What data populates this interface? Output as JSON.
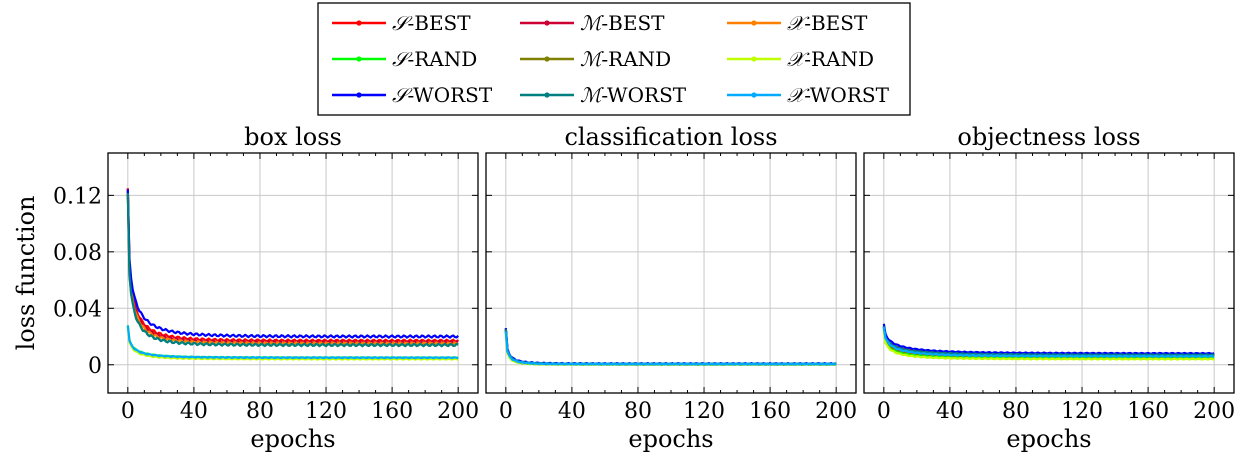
{
  "legend": {
    "entries": [
      {
        "prefix": "𝒮",
        "variant": "-BEST",
        "color": "#ff0000"
      },
      {
        "prefix": "ℳ",
        "variant": "-BEST",
        "color": "#cc0033"
      },
      {
        "prefix": "𝒳",
        "variant": "-BEST",
        "color": "#ff8000"
      },
      {
        "prefix": "𝒮",
        "variant": "-RAND",
        "color": "#00ff00"
      },
      {
        "prefix": "ℳ",
        "variant": "-RAND",
        "color": "#808000"
      },
      {
        "prefix": "𝒳",
        "variant": "-RAND",
        "color": "#bfff00"
      },
      {
        "prefix": "𝒮",
        "variant": "-WORST",
        "color": "#0000ff"
      },
      {
        "prefix": "ℳ",
        "variant": "-WORST",
        "color": "#008080"
      },
      {
        "prefix": "𝒳",
        "variant": "-WORST",
        "color": "#00aaff"
      }
    ]
  },
  "chart_data": [
    {
      "type": "line",
      "title": "box loss",
      "xlabel": "epochs",
      "ylabel": "loss function",
      "xlim": [
        -12,
        212
      ],
      "ylim": [
        -0.02,
        0.15
      ],
      "xticks": [
        "0",
        "40",
        "80",
        "120",
        "160",
        "200"
      ],
      "yticks": [
        "0",
        "0.04",
        "0.08",
        "0.12"
      ],
      "grid": true,
      "series": [
        {
          "name": "𝒮-BEST",
          "color": "#ff0000",
          "start": 0.125,
          "end": 0.017,
          "k": 4.5
        },
        {
          "name": "ℳ-BEST",
          "color": "#cc0033",
          "start": 0.124,
          "end": 0.016,
          "k": 4.6
        },
        {
          "name": "𝒳-BEST",
          "color": "#ff8000",
          "start": 0.123,
          "end": 0.015,
          "k": 4.7
        },
        {
          "name": "𝒮-RAND",
          "color": "#00ff00",
          "start": 0.028,
          "end": 0.005,
          "k": 4.0
        },
        {
          "name": "ℳ-RAND",
          "color": "#808000",
          "start": 0.12,
          "end": 0.014,
          "k": 4.8
        },
        {
          "name": "𝒳-RAND",
          "color": "#bfff00",
          "start": 0.027,
          "end": 0.004,
          "k": 4.2
        },
        {
          "name": "𝒮-WORST",
          "color": "#0000ff",
          "start": 0.124,
          "end": 0.02,
          "k": 4.2
        },
        {
          "name": "ℳ-WORST",
          "color": "#008080",
          "start": 0.121,
          "end": 0.014,
          "k": 4.9
        },
        {
          "name": "𝒳-WORST",
          "color": "#00aaff",
          "start": 0.028,
          "end": 0.005,
          "k": 4.1
        }
      ]
    },
    {
      "type": "line",
      "title": "classification loss",
      "xlabel": "epochs",
      "ylabel": "",
      "xlim": [
        -12,
        212
      ],
      "ylim": [
        -0.02,
        0.15
      ],
      "xticks": [
        "0",
        "40",
        "80",
        "120",
        "160",
        "200"
      ],
      "yticks": [],
      "grid": true,
      "series": [
        {
          "name": "𝒮-BEST",
          "color": "#ff0000",
          "start": 0.025,
          "end": 0.0005,
          "k": 6.0
        },
        {
          "name": "ℳ-BEST",
          "color": "#cc0033",
          "start": 0.025,
          "end": 0.0005,
          "k": 6.2
        },
        {
          "name": "𝒳-BEST",
          "color": "#ff8000",
          "start": 0.024,
          "end": 0.0004,
          "k": 6.1
        },
        {
          "name": "𝒮-RAND",
          "color": "#00ff00",
          "start": 0.023,
          "end": 0.0003,
          "k": 6.5
        },
        {
          "name": "ℳ-RAND",
          "color": "#808000",
          "start": 0.024,
          "end": 0.0004,
          "k": 6.3
        },
        {
          "name": "𝒳-RAND",
          "color": "#bfff00",
          "start": 0.022,
          "end": 0.0003,
          "k": 6.6
        },
        {
          "name": "𝒮-WORST",
          "color": "#0000ff",
          "start": 0.026,
          "end": 0.0008,
          "k": 5.8
        },
        {
          "name": "ℳ-WORST",
          "color": "#008080",
          "start": 0.025,
          "end": 0.0006,
          "k": 6.0
        },
        {
          "name": "𝒳-WORST",
          "color": "#00aaff",
          "start": 0.024,
          "end": 0.0005,
          "k": 6.2
        }
      ]
    },
    {
      "type": "line",
      "title": "objectness loss",
      "xlabel": "epochs",
      "ylabel": "",
      "xlim": [
        -12,
        212
      ],
      "ylim": [
        -0.02,
        0.15
      ],
      "xticks": [
        "0",
        "40",
        "80",
        "120",
        "160",
        "200"
      ],
      "yticks": [],
      "grid": true,
      "series": [
        {
          "name": "𝒮-BEST",
          "color": "#ff0000",
          "start": 0.027,
          "end": 0.007,
          "k": 3.0
        },
        {
          "name": "ℳ-BEST",
          "color": "#cc0033",
          "start": 0.027,
          "end": 0.007,
          "k": 3.1
        },
        {
          "name": "𝒳-BEST",
          "color": "#ff8000",
          "start": 0.026,
          "end": 0.006,
          "k": 3.2
        },
        {
          "name": "𝒮-RAND",
          "color": "#00ff00",
          "start": 0.025,
          "end": 0.005,
          "k": 3.4
        },
        {
          "name": "ℳ-RAND",
          "color": "#808000",
          "start": 0.026,
          "end": 0.006,
          "k": 3.3
        },
        {
          "name": "𝒳-RAND",
          "color": "#bfff00",
          "start": 0.024,
          "end": 0.004,
          "k": 3.5
        },
        {
          "name": "𝒮-WORST",
          "color": "#0000ff",
          "start": 0.029,
          "end": 0.008,
          "k": 2.8
        },
        {
          "name": "ℳ-WORST",
          "color": "#008080",
          "start": 0.027,
          "end": 0.007,
          "k": 3.0
        },
        {
          "name": "𝒳-WORST",
          "color": "#00aaff",
          "start": 0.027,
          "end": 0.006,
          "k": 3.1
        }
      ]
    }
  ]
}
